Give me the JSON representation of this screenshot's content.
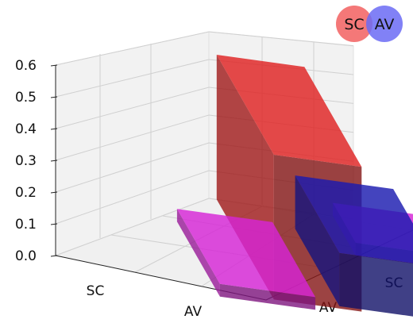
{
  "chart_data": {
    "type": "bar3d",
    "x_categories": [
      "SC",
      "AV"
    ],
    "y_categories": [
      "AV",
      "SC"
    ],
    "zlim": [
      0.0,
      0.6
    ],
    "z_ticks": [
      "0.0",
      "0.1",
      "0.2",
      "0.3",
      "0.4",
      "0.5",
      "0.6"
    ],
    "grid": true,
    "legend": {
      "placement": "top-right",
      "items": [
        {
          "label": "SC",
          "color": "#f26060"
        },
        {
          "label": "AV",
          "color": "#6b6bf5"
        }
      ]
    },
    "bars": [
      {
        "x": "SC",
        "y": "SC",
        "value": 0.57,
        "color": "#d42020"
      },
      {
        "x": "SC",
        "y": "AV",
        "value": 0.05,
        "color": "#cc22cc"
      },
      {
        "x": "AV",
        "y": "SC",
        "value": 0.05,
        "color": "#cc22cc"
      },
      {
        "x": "AV",
        "y": "AV",
        "value": 0.21,
        "color": "#1a1aa8"
      }
    ]
  }
}
